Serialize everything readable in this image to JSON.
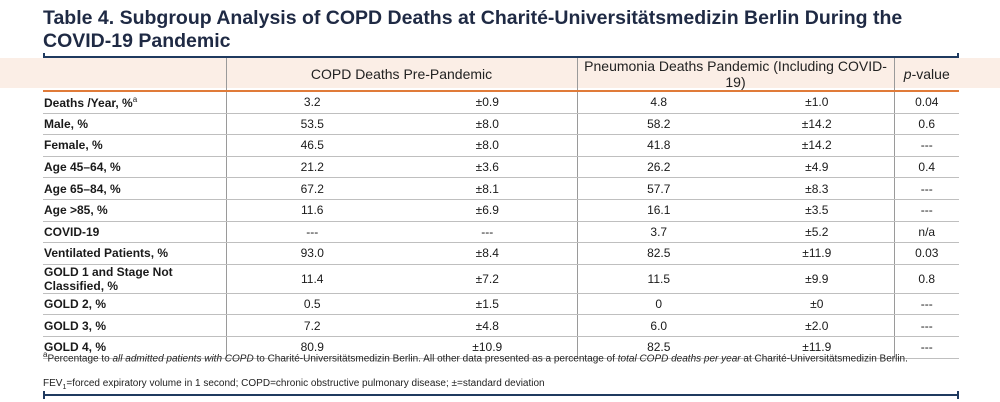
{
  "title": "Table 4. Subgroup Analysis of COPD Deaths at Charité-Universitätsmedizin Berlin During the COVID-19 Pandemic",
  "colors": {
    "title": "#1f2a44",
    "header_band": "#fbeee6",
    "header_rule": "#e07b39",
    "frame_rule": "#1f3a5f"
  },
  "columns": {
    "group1": "COPD Deaths Pre-Pandemic",
    "group2": "Pneumonia Deaths Pandemic (Including COVID-19)",
    "pvalue_italic": "p",
    "pvalue_rest": "-value"
  },
  "rows": [
    {
      "label": "Deaths /Year, %",
      "sup": "a",
      "pre_val": "3.2",
      "pre_sd": "±0.9",
      "pan_val": "4.8",
      "pan_sd": "±1.0",
      "p": "0.04"
    },
    {
      "label": "Male, %",
      "sup": "",
      "pre_val": "53.5",
      "pre_sd": "±8.0",
      "pan_val": "58.2",
      "pan_sd": "±14.2",
      "p": "0.6"
    },
    {
      "label": "Female, %",
      "sup": "",
      "pre_val": "46.5",
      "pre_sd": "±8.0",
      "pan_val": "41.8",
      "pan_sd": "±14.2",
      "p": "---"
    },
    {
      "label": "Age 45–64, %",
      "sup": "",
      "pre_val": "21.2",
      "pre_sd": "±3.6",
      "pan_val": "26.2",
      "pan_sd": "±4.9",
      "p": "0.4"
    },
    {
      "label": "Age 65–84, %",
      "sup": "",
      "pre_val": "67.2",
      "pre_sd": "±8.1",
      "pan_val": "57.7",
      "pan_sd": "±8.3",
      "p": "---"
    },
    {
      "label": "Age >85, %",
      "sup": "",
      "pre_val": "11.6",
      "pre_sd": "±6.9",
      "pan_val": "16.1",
      "pan_sd": "±3.5",
      "p": "---"
    },
    {
      "label": "COVID-19",
      "sup": "",
      "pre_val": "---",
      "pre_sd": "---",
      "pan_val": "3.7",
      "pan_sd": "±5.2",
      "p": "n/a"
    },
    {
      "label": "Ventilated Patients, %",
      "sup": "",
      "pre_val": "93.0",
      "pre_sd": "±8.4",
      "pan_val": "82.5",
      "pan_sd": "±11.9",
      "p": "0.03"
    },
    {
      "label": "GOLD 1 and Stage Not Classified, %",
      "sup": "",
      "pre_val": "11.4",
      "pre_sd": "±7.2",
      "pan_val": "11.5",
      "pan_sd": "±9.9",
      "p": "0.8"
    },
    {
      "label": "GOLD 2, %",
      "sup": "",
      "pre_val": "0.5",
      "pre_sd": "±1.5",
      "pan_val": "0",
      "pan_sd": "±0",
      "p": "---"
    },
    {
      "label": "GOLD 3, %",
      "sup": "",
      "pre_val": "7.2",
      "pre_sd": "±4.8",
      "pan_val": "6.0",
      "pan_sd": "±2.0",
      "p": "---"
    },
    {
      "label": "GOLD 4, %",
      "sup": "",
      "pre_val": "80.9",
      "pre_sd": "±10.9",
      "pan_val": "82.5",
      "pan_sd": "±11.9",
      "p": "---"
    }
  ],
  "footnote": {
    "mark": "a",
    "part1": "Percentage to ",
    "italic1": "all admitted patients with COPD",
    "part2": " to Charité-Universitätsmedizin Berlin. All other data presented as a percentage of ",
    "italic2": "total COPD deaths per year",
    "part3": " at Charité-Universitätsmedizin Berlin."
  },
  "abbreviations": {
    "fev": "FEV",
    "fev_sub": "1",
    "rest": "=forced expiratory volume in 1 second; COPD=chronic obstructive pulmonary disease; ±=standard deviation"
  }
}
